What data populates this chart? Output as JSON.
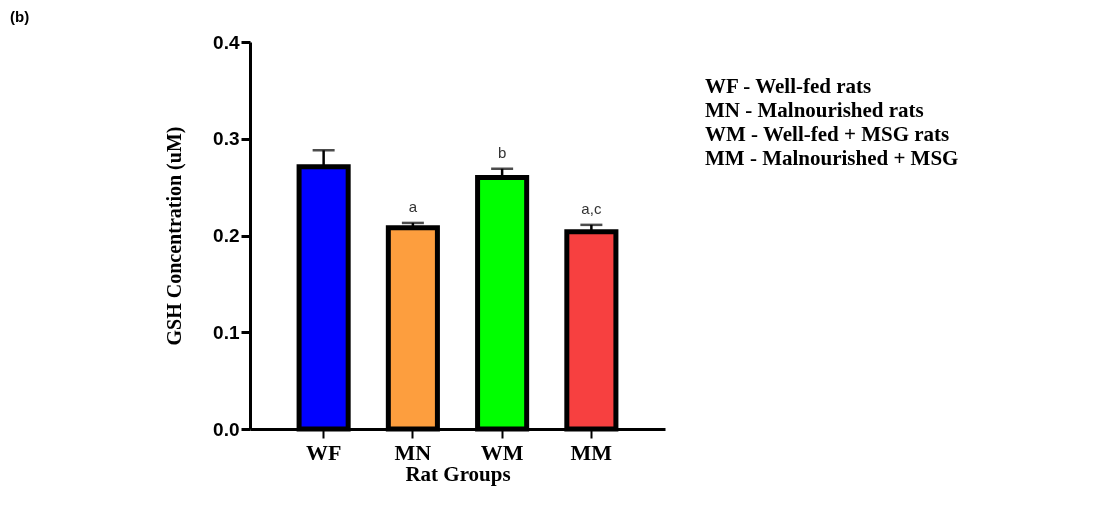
{
  "chart_data": {
    "type": "bar",
    "xlabel": "Rat Groups",
    "ylabel": "GSH Concentration (uM)",
    "categories": [
      "WF",
      "MN",
      "WM",
      "MM"
    ],
    "values": [
      0.271,
      0.208,
      0.26,
      0.204
    ],
    "colors": [
      "#0000ff",
      "#fd9e3e",
      "#00ff00",
      "#f74040"
    ],
    "errors": [
      [
        0.271,
        0.288
      ],
      [
        0.208,
        0.213
      ],
      [
        0.26,
        0.269
      ],
      [
        0.204,
        0.211
      ]
    ],
    "ylim": [
      0,
      0.4
    ],
    "yticks": [
      {
        "value": 0,
        "label": "0.0"
      },
      0.1,
      0.2,
      0.3,
      0.4
    ],
    "grid": false,
    "annotations": [
      "(b)",
      "a",
      "b",
      "a,c",
      "WF - Well-fed rats",
      "MN - Malnourished rats",
      "WM - Well-fed + MSG rats",
      "MM - Malnourished + MSG"
    ]
  }
}
